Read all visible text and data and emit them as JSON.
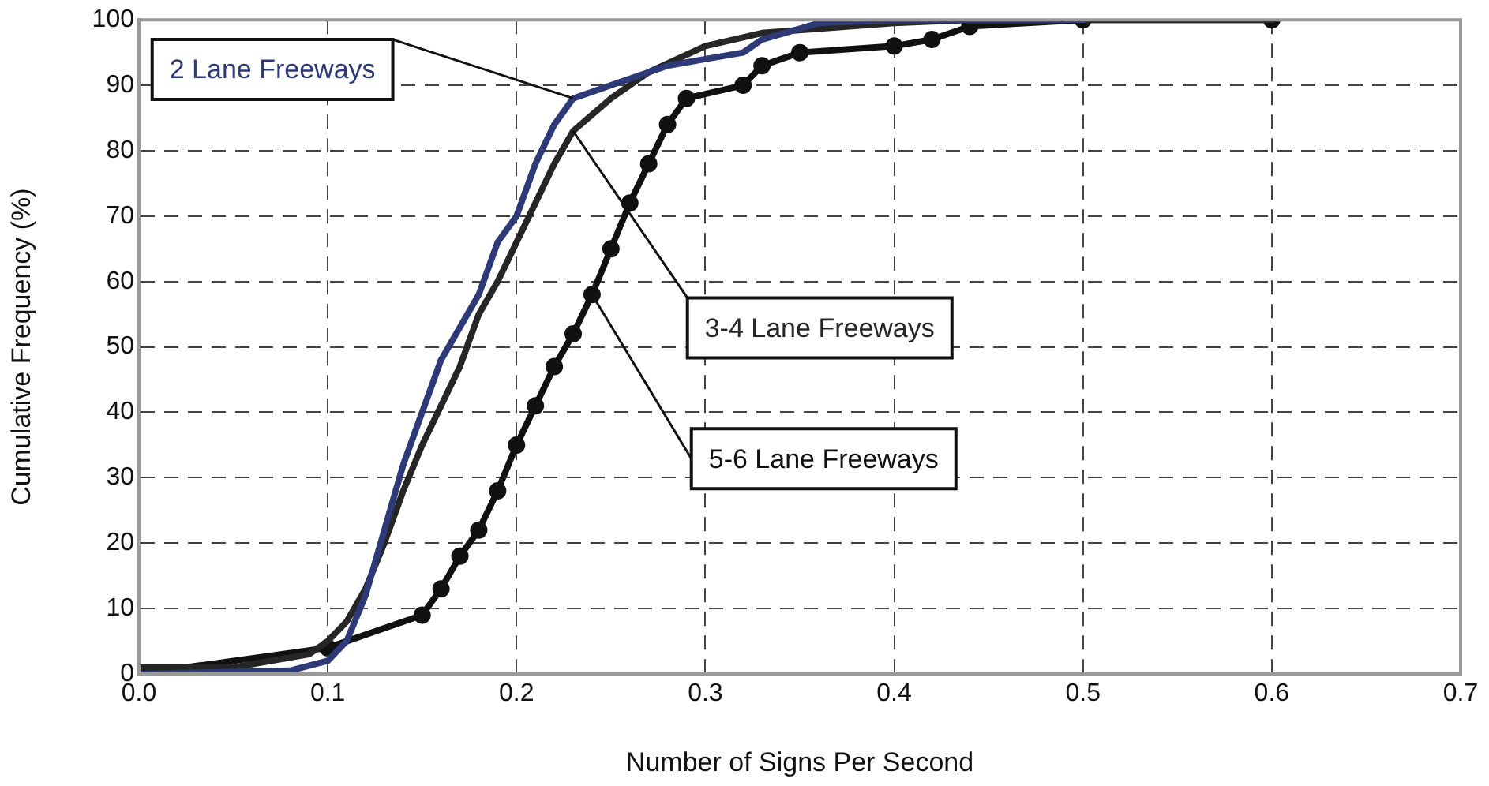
{
  "chart_data": {
    "type": "line",
    "xlabel": "Number of Signs Per Second",
    "ylabel": "Cumulative Frequency (%)",
    "xlim": [
      0,
      0.7
    ],
    "xticks": [
      {
        "value": 0,
        "label": "0.0"
      },
      {
        "value": 0.1,
        "label": "0.1"
      },
      {
        "value": 0.2,
        "label": "0.2"
      },
      {
        "value": 0.3,
        "label": "0.3"
      },
      {
        "value": 0.4,
        "label": "0.4"
      },
      {
        "value": 0.5,
        "label": "0.5"
      },
      {
        "value": 0.6,
        "label": "0.6"
      },
      {
        "value": 0.7,
        "label": "0.7"
      }
    ],
    "ylim": [
      0,
      100
    ],
    "yticks": [
      0,
      10,
      20,
      30,
      40,
      50,
      60,
      70,
      80,
      90,
      100
    ],
    "grid": true,
    "legend": false,
    "line_style": "solid",
    "series": [
      {
        "name": "2 Lane Freeways",
        "color": "#2e3a78",
        "marker": "none",
        "x": [
          0,
          0.08,
          0.1,
          0.11,
          0.12,
          0.13,
          0.14,
          0.15,
          0.16,
          0.17,
          0.18,
          0.19,
          0.2,
          0.21,
          0.22,
          0.23,
          0.25,
          0.28,
          0.3,
          0.32,
          0.33,
          0.36,
          0.4,
          0.5
        ],
        "values": [
          0,
          0.5,
          2,
          5,
          12,
          22,
          32,
          40,
          48,
          53,
          58,
          66,
          70,
          78,
          84,
          88,
          90,
          93,
          94,
          95,
          97,
          99.5,
          100,
          100
        ]
      },
      {
        "name": "3-4 Lane Freeways",
        "color": "#262626",
        "marker": "none",
        "x": [
          0,
          0.05,
          0.09,
          0.1,
          0.11,
          0.12,
          0.13,
          0.14,
          0.15,
          0.16,
          0.17,
          0.18,
          0.19,
          0.2,
          0.21,
          0.22,
          0.23,
          0.25,
          0.27,
          0.3,
          0.33,
          0.4,
          0.44,
          0.6
        ],
        "values": [
          1,
          1,
          3,
          5,
          8,
          13,
          20,
          28,
          35,
          41,
          47,
          55,
          60,
          66,
          72,
          78,
          83,
          88,
          92,
          96,
          98,
          99.5,
          100,
          100
        ]
      },
      {
        "name": "5-6 Lane Freeways",
        "color": "#111111",
        "marker": "circle",
        "x": [
          0,
          0.1,
          0.15,
          0.16,
          0.17,
          0.18,
          0.19,
          0.2,
          0.21,
          0.22,
          0.23,
          0.24,
          0.25,
          0.26,
          0.27,
          0.28,
          0.29,
          0.32,
          0.33,
          0.35,
          0.4,
          0.42,
          0.44,
          0.5,
          0.6
        ],
        "values": [
          0,
          4,
          9,
          13,
          18,
          22,
          28,
          35,
          41,
          47,
          52,
          58,
          65,
          72,
          78,
          84,
          88,
          90,
          93,
          95,
          96,
          97,
          99,
          100,
          100
        ]
      }
    ]
  }
}
